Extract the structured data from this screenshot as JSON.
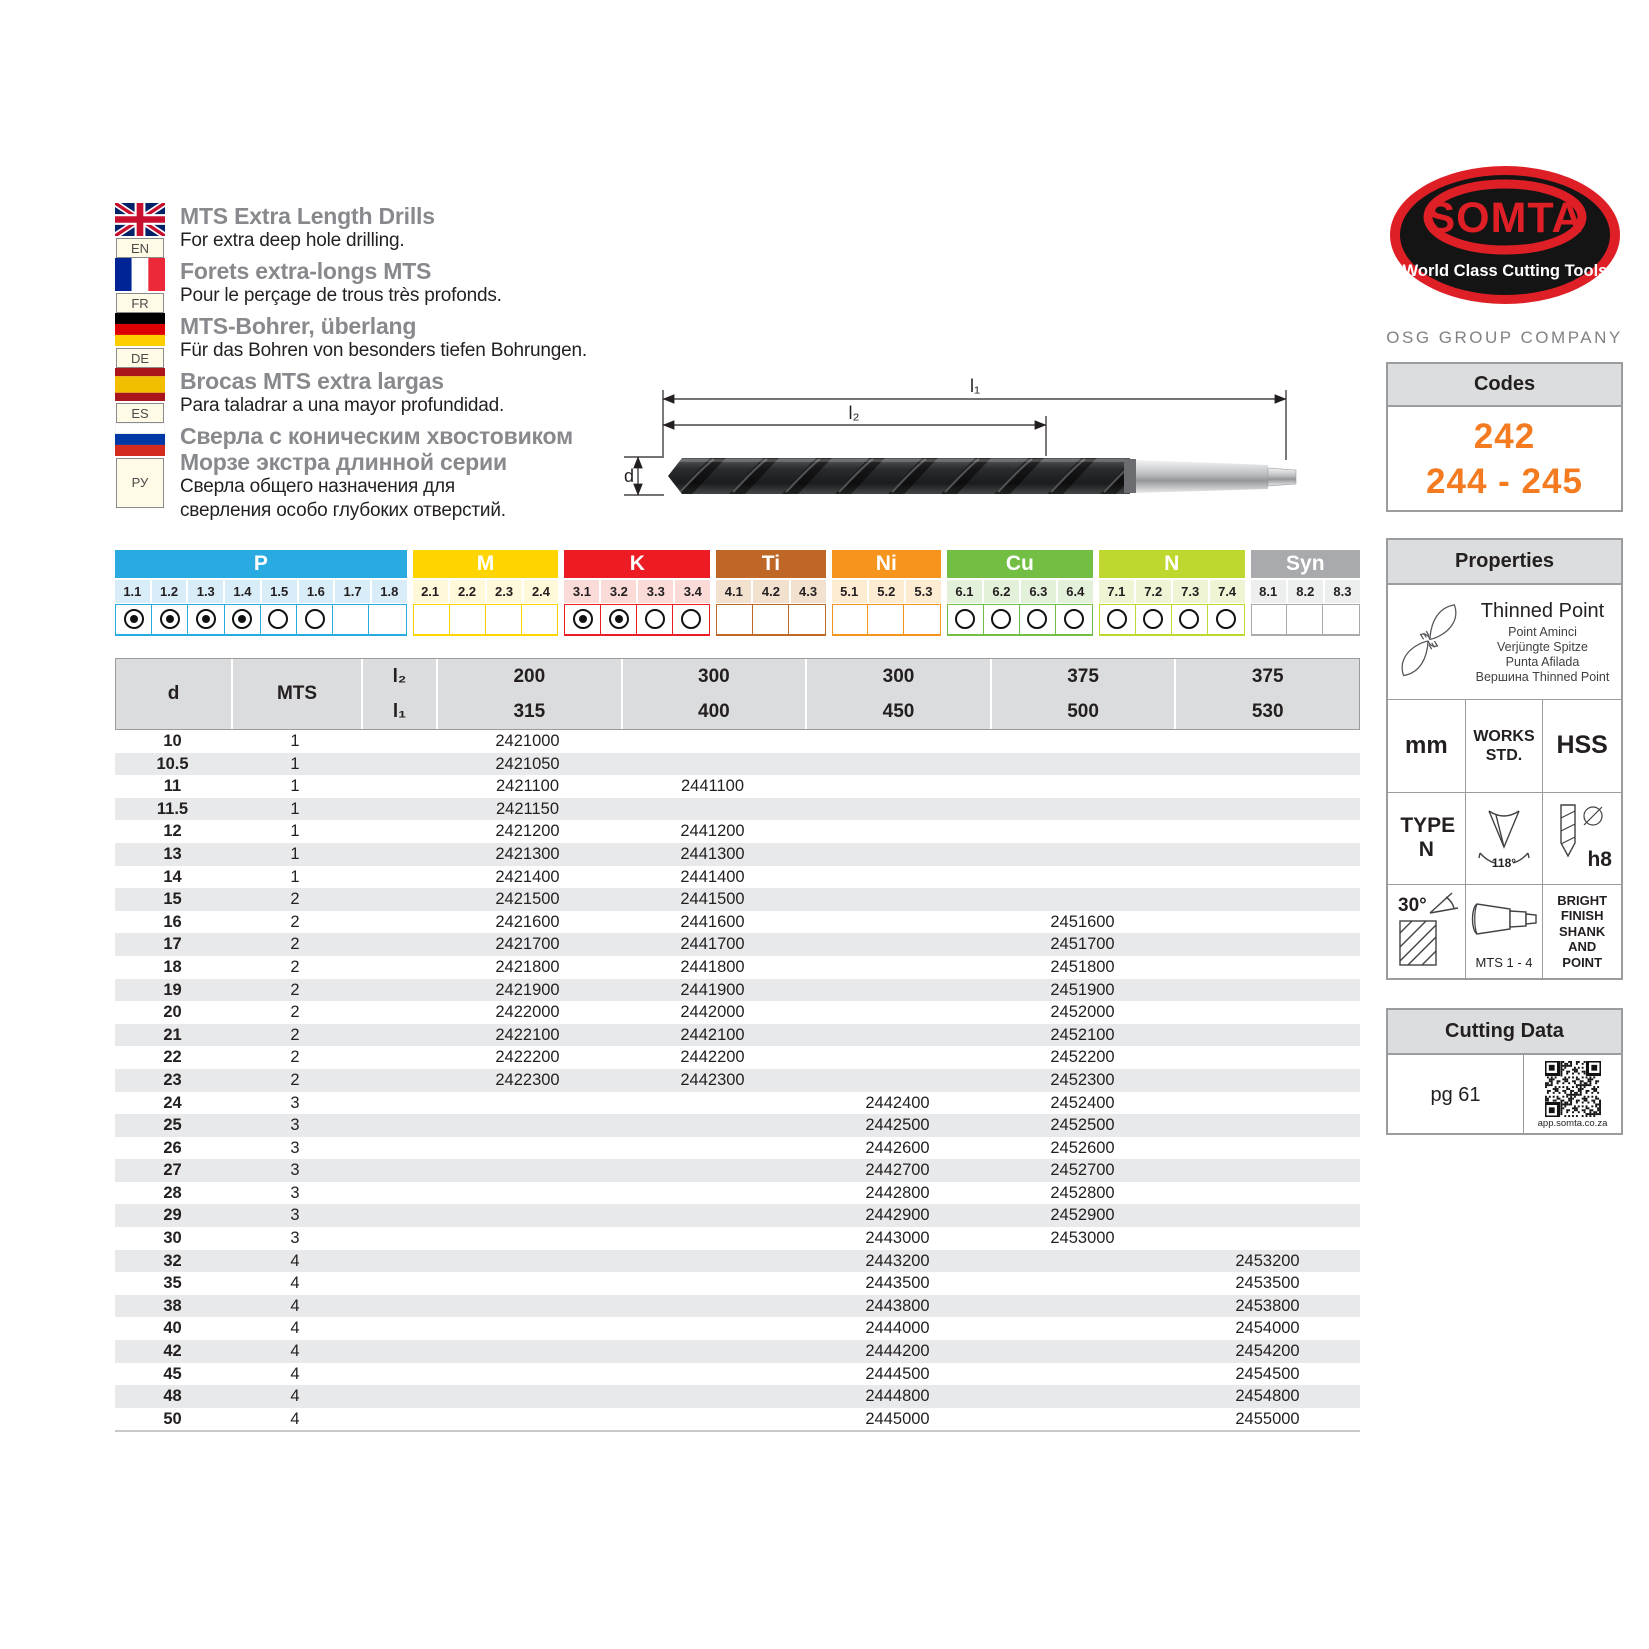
{
  "languages": [
    {
      "flag": "uk",
      "code": "EN",
      "titles": [
        "MTS Extra Length Drills"
      ],
      "subs": [
        "For extra deep hole drilling."
      ]
    },
    {
      "flag": "france",
      "code": "FR",
      "titles": [
        "Forets extra-longs MTS"
      ],
      "subs": [
        "Pour le perçage de trous très profonds."
      ]
    },
    {
      "flag": "germany",
      "code": "DE",
      "titles": [
        "MTS-Bohrer, überlang"
      ],
      "subs": [
        "Für das Bohren von besonders tiefen Bohrungen."
      ]
    },
    {
      "flag": "spain",
      "code": "ES",
      "titles": [
        "Brocas MTS extra largas"
      ],
      "subs": [
        "Para taladrar a una mayor profundidad."
      ]
    },
    {
      "flag": "russia",
      "code": "РУ",
      "titles": [
        "Сверла с коническим хвостовиком",
        "Морзе экстра длинной серии"
      ],
      "subs": [
        "Сверла общего назначения для",
        "сверления особо глубоких отверстий."
      ]
    }
  ],
  "logo": {
    "brand": "SOMTA",
    "tagline": "World Class Cutting Tools",
    "company": "OSG GROUP COMPANY",
    "red": "#DF1F26"
  },
  "codes_box": {
    "title": "Codes",
    "lines": [
      "242",
      "244 - 245"
    ],
    "accent": "#F47B20"
  },
  "diagram": {
    "l1": "l₁",
    "l2": "l₂",
    "d": "d"
  },
  "materials": [
    {
      "name": "P",
      "color": "#29ABE2",
      "tint": "#D9EDF9",
      "subs": [
        {
          "code": "1.1",
          "radio": "filled"
        },
        {
          "code": "1.2",
          "radio": "filled"
        },
        {
          "code": "1.3",
          "radio": "filled"
        },
        {
          "code": "1.4",
          "radio": "filled"
        },
        {
          "code": "1.5",
          "radio": "empty"
        },
        {
          "code": "1.6",
          "radio": "empty"
        },
        {
          "code": "1.7",
          "radio": "none"
        },
        {
          "code": "1.8",
          "radio": "none"
        }
      ]
    },
    {
      "name": "M",
      "color": "#FFD500",
      "tint": "#FFF8D9",
      "subs": [
        {
          "code": "2.1",
          "radio": "none"
        },
        {
          "code": "2.2",
          "radio": "none"
        },
        {
          "code": "2.3",
          "radio": "none"
        },
        {
          "code": "2.4",
          "radio": "none"
        }
      ]
    },
    {
      "name": "K",
      "color": "#ED1C24",
      "tint": "#FBDBD8",
      "subs": [
        {
          "code": "3.1",
          "radio": "filled"
        },
        {
          "code": "3.2",
          "radio": "filled"
        },
        {
          "code": "3.3",
          "radio": "empty"
        },
        {
          "code": "3.4",
          "radio": "empty"
        }
      ]
    },
    {
      "name": "Ti",
      "color": "#BE6726",
      "tint": "#F3E1D0",
      "subs": [
        {
          "code": "4.1",
          "radio": "none"
        },
        {
          "code": "4.2",
          "radio": "none"
        },
        {
          "code": "4.3",
          "radio": "none"
        }
      ]
    },
    {
      "name": "Ni",
      "color": "#F7941E",
      "tint": "#FDEBD2",
      "subs": [
        {
          "code": "5.1",
          "radio": "none"
        },
        {
          "code": "5.2",
          "radio": "none"
        },
        {
          "code": "5.3",
          "radio": "none"
        }
      ]
    },
    {
      "name": "Cu",
      "color": "#72BF44",
      "tint": "#E4F1DA",
      "subs": [
        {
          "code": "6.1",
          "radio": "empty"
        },
        {
          "code": "6.2",
          "radio": "empty"
        },
        {
          "code": "6.3",
          "radio": "empty"
        },
        {
          "code": "6.4",
          "radio": "empty"
        }
      ]
    },
    {
      "name": "N",
      "color": "#C0D72F",
      "tint": "#EFF5D4",
      "subs": [
        {
          "code": "7.1",
          "radio": "empty"
        },
        {
          "code": "7.2",
          "radio": "empty"
        },
        {
          "code": "7.3",
          "radio": "empty"
        },
        {
          "code": "7.4",
          "radio": "empty"
        }
      ]
    },
    {
      "name": "Syn",
      "color": "#A8AAAD",
      "tint": "#EDEEEE",
      "subs": [
        {
          "code": "8.1",
          "radio": "none"
        },
        {
          "code": "8.2",
          "radio": "none"
        },
        {
          "code": "8.3",
          "radio": "none"
        }
      ]
    }
  ],
  "table": {
    "d_label": "d",
    "mts_label": "MTS",
    "l2_label": "l₂",
    "l1_label": "l₁",
    "columns": [
      {
        "l2": "200",
        "l1": "315"
      },
      {
        "l2": "300",
        "l1": "400"
      },
      {
        "l2": "300",
        "l1": "450"
      },
      {
        "l2": "375",
        "l1": "500"
      },
      {
        "l2": "375",
        "l1": "530"
      }
    ],
    "rows": [
      {
        "d": "10",
        "mts": "1",
        "c": [
          "2421000",
          "",
          "",
          "",
          ""
        ]
      },
      {
        "d": "10.5",
        "mts": "1",
        "c": [
          "2421050",
          "",
          "",
          "",
          ""
        ]
      },
      {
        "d": "11",
        "mts": "1",
        "c": [
          "2421100",
          "2441100",
          "",
          "",
          ""
        ]
      },
      {
        "d": "11.5",
        "mts": "1",
        "c": [
          "2421150",
          "",
          "",
          "",
          ""
        ]
      },
      {
        "d": "12",
        "mts": "1",
        "c": [
          "2421200",
          "2441200",
          "",
          "",
          ""
        ]
      },
      {
        "d": "13",
        "mts": "1",
        "c": [
          "2421300",
          "2441300",
          "",
          "",
          ""
        ]
      },
      {
        "d": "14",
        "mts": "1",
        "c": [
          "2421400",
          "2441400",
          "",
          "",
          ""
        ]
      },
      {
        "d": "15",
        "mts": "2",
        "c": [
          "2421500",
          "2441500",
          "",
          "",
          ""
        ]
      },
      {
        "d": "16",
        "mts": "2",
        "c": [
          "2421600",
          "2441600",
          "",
          "2451600",
          ""
        ]
      },
      {
        "d": "17",
        "mts": "2",
        "c": [
          "2421700",
          "2441700",
          "",
          "2451700",
          ""
        ]
      },
      {
        "d": "18",
        "mts": "2",
        "c": [
          "2421800",
          "2441800",
          "",
          "2451800",
          ""
        ]
      },
      {
        "d": "19",
        "mts": "2",
        "c": [
          "2421900",
          "2441900",
          "",
          "2451900",
          ""
        ]
      },
      {
        "d": "20",
        "mts": "2",
        "c": [
          "2422000",
          "2442000",
          "",
          "2452000",
          ""
        ]
      },
      {
        "d": "21",
        "mts": "2",
        "c": [
          "2422100",
          "2442100",
          "",
          "2452100",
          ""
        ]
      },
      {
        "d": "22",
        "mts": "2",
        "c": [
          "2422200",
          "2442200",
          "",
          "2452200",
          ""
        ]
      },
      {
        "d": "23",
        "mts": "2",
        "c": [
          "2422300",
          "2442300",
          "",
          "2452300",
          ""
        ]
      },
      {
        "d": "24",
        "mts": "3",
        "c": [
          "",
          "",
          "2442400",
          "2452400",
          ""
        ]
      },
      {
        "d": "25",
        "mts": "3",
        "c": [
          "",
          "",
          "2442500",
          "2452500",
          ""
        ]
      },
      {
        "d": "26",
        "mts": "3",
        "c": [
          "",
          "",
          "2442600",
          "2452600",
          ""
        ]
      },
      {
        "d": "27",
        "mts": "3",
        "c": [
          "",
          "",
          "2442700",
          "2452700",
          ""
        ]
      },
      {
        "d": "28",
        "mts": "3",
        "c": [
          "",
          "",
          "2442800",
          "2452800",
          ""
        ]
      },
      {
        "d": "29",
        "mts": "3",
        "c": [
          "",
          "",
          "2442900",
          "2452900",
          ""
        ]
      },
      {
        "d": "30",
        "mts": "3",
        "c": [
          "",
          "",
          "2443000",
          "2453000",
          ""
        ]
      },
      {
        "d": "32",
        "mts": "4",
        "c": [
          "",
          "",
          "2443200",
          "",
          "2453200"
        ]
      },
      {
        "d": "35",
        "mts": "4",
        "c": [
          "",
          "",
          "2443500",
          "",
          "2453500"
        ]
      },
      {
        "d": "38",
        "mts": "4",
        "c": [
          "",
          "",
          "2443800",
          "",
          "2453800"
        ]
      },
      {
        "d": "40",
        "mts": "4",
        "c": [
          "",
          "",
          "2444000",
          "",
          "2454000"
        ]
      },
      {
        "d": "42",
        "mts": "4",
        "c": [
          "",
          "",
          "2444200",
          "",
          "2454200"
        ]
      },
      {
        "d": "45",
        "mts": "4",
        "c": [
          "",
          "",
          "2444500",
          "",
          "2454500"
        ]
      },
      {
        "d": "48",
        "mts": "4",
        "c": [
          "",
          "",
          "2444800",
          "",
          "2454800"
        ]
      },
      {
        "d": "50",
        "mts": "4",
        "c": [
          "",
          "",
          "2445000",
          "",
          "2455000"
        ]
      }
    ]
  },
  "properties": {
    "title": "Properties",
    "feature": {
      "name": "Thinned Point",
      "translations": [
        "Point Aminci",
        "Verjüngte Spitze",
        "Punta Afilada",
        "Вершина Thinned Point"
      ]
    },
    "cells": {
      "unit": "mm",
      "works_std": "WORKS STD.",
      "material": "HSS",
      "type": "TYPE N",
      "point_angle": "118°",
      "tolerance": "h8",
      "helix": "30°",
      "shank": "MTS 1 - 4",
      "finish": "BRIGHT FINISH SHANK AND POINT"
    }
  },
  "cutting_data": {
    "title": "Cutting Data",
    "page": "pg 61",
    "qr_caption": "app.somta.co.za"
  },
  "icons": [
    "flag-uk-icon",
    "flag-france-icon",
    "flag-germany-icon",
    "flag-spain-icon",
    "flag-russia-icon",
    "somta-logo",
    "drill-photo",
    "dimension-arrows",
    "thinned-point-icon",
    "point-angle-icon",
    "tolerance-icon",
    "helix-angle-icon",
    "taper-shank-icon",
    "qr-code-icon"
  ]
}
